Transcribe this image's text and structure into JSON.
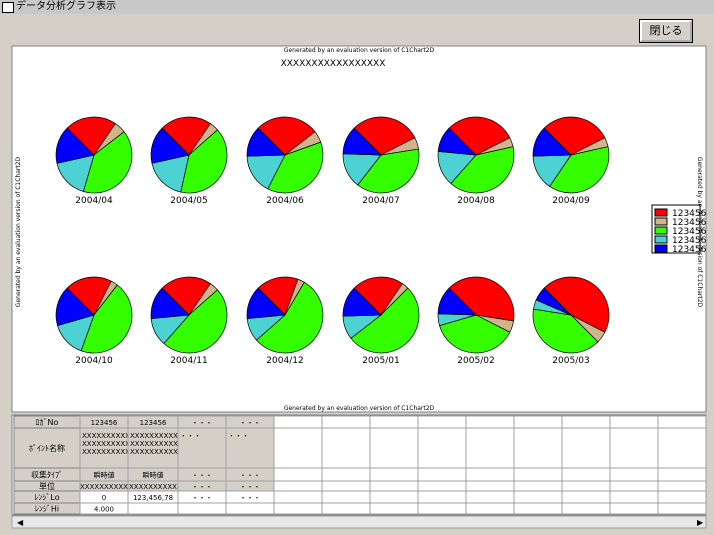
{
  "window": {
    "title": "データ分析グラフ表示",
    "close_button": "閉じる"
  },
  "chart": {
    "watermark_top": "Generated by an evaluation version of C1Chart2D",
    "watermark_bottom": "Generated by an evaluation version of C1Chart2D",
    "watermark_left": "Generated by an evaluation version of C1Chart2D",
    "watermark_right": "Generated by an evaluation version of C1Chart2D",
    "header": "XXXXXXXXXXXXXXXXX",
    "legend": [
      {
        "name": "123456",
        "color": "#ff0000"
      },
      {
        "name": "123456",
        "color": "#d2b48c"
      },
      {
        "name": "123456",
        "color": "#33ff00"
      },
      {
        "name": "123456",
        "color": "#4cd2d2"
      },
      {
        "name": "123456",
        "color": "#0000ff"
      }
    ],
    "pies": [
      {
        "label": "2004/04",
        "values": [
          22,
          5,
          40,
          17,
          16
        ]
      },
      {
        "label": "2004/05",
        "values": [
          22,
          4,
          40,
          18,
          16
        ]
      },
      {
        "label": "2004/06",
        "values": [
          27,
          5,
          38,
          17,
          13
        ]
      },
      {
        "label": "2004/07",
        "values": [
          30,
          5,
          38,
          15,
          12
        ]
      },
      {
        "label": "2004/08",
        "values": [
          30,
          4,
          40,
          15,
          11
        ]
      },
      {
        "label": "2004/09",
        "values": [
          30,
          4,
          38,
          15,
          13
        ]
      },
      {
        "label": "2004/10",
        "values": [
          20,
          3,
          45,
          15,
          17
        ]
      },
      {
        "label": "2004/11",
        "values": [
          22,
          4,
          48,
          12,
          14
        ]
      },
      {
        "label": "2004/12",
        "values": [
          18,
          3,
          55,
          10,
          14
        ]
      },
      {
        "label": "2005/01",
        "values": [
          22,
          3,
          52,
          10,
          13
        ]
      },
      {
        "label": "2005/02",
        "values": [
          40,
          5,
          38,
          5,
          12
        ]
      },
      {
        "label": "2005/03",
        "values": [
          45,
          5,
          40,
          4,
          6
        ]
      }
    ]
  },
  "table": {
    "row_headers": [
      "ﾛｶﾞNo",
      "ﾎﾟｲﾝﾄ名称",
      "収集ﾀｲﾌﾟ",
      "単位",
      "ﾚﾝｼﾞLo",
      "ﾚﾝｼﾞHi"
    ],
    "rows": [
      [
        "123456",
        "123456",
        "・・・",
        "・・・"
      ],
      [
        "XXXXXXXXXXX XXXXXXXXXXX XXXXXXXXXXX",
        "XXXXXXXXXXX XXXXXXXXXXX XXXXXXXXXXX",
        "・・・",
        "・・・"
      ],
      [
        "瞬時値",
        "瞬時値",
        "・・・",
        "・・・"
      ],
      [
        "XXXXXXXXXX",
        "XXXXXXXXXX",
        "・・・",
        "・・・"
      ],
      [
        "0",
        "123,456,78",
        "・・・",
        "・・・"
      ],
      [
        "4.000",
        null,
        null,
        null
      ]
    ]
  }
}
